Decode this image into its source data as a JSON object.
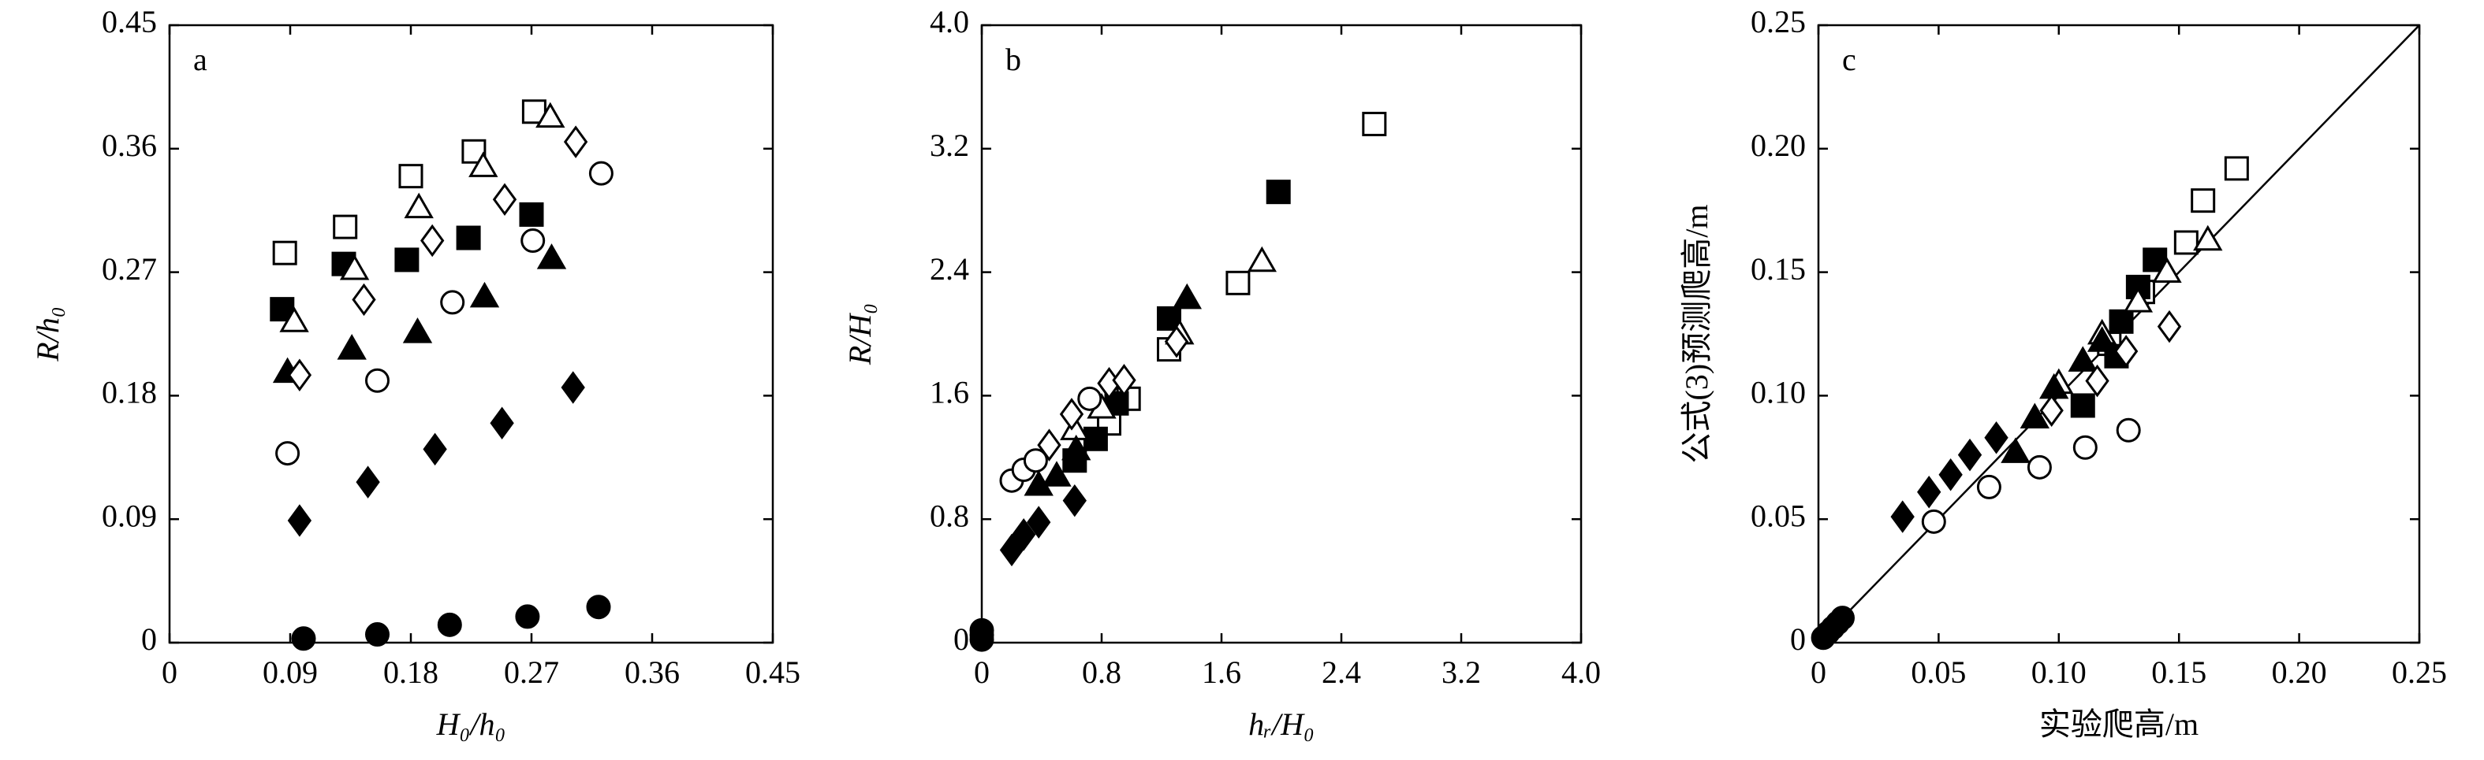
{
  "chart_data": [
    {
      "type": "scatter",
      "panel_label": "a",
      "xlabel": "H₀/h₀",
      "ylabel": "R/h₀",
      "xlim": [
        0,
        0.45
      ],
      "ylim": [
        0,
        0.45
      ],
      "xticks": [
        0,
        0.09,
        0.18,
        0.27,
        0.36,
        0.45
      ],
      "yticks": [
        0,
        0.09,
        0.18,
        0.27,
        0.36,
        0.45
      ],
      "series": [
        {
          "marker": "square",
          "filled": false,
          "color": "#000000",
          "x": [
            0.086,
            0.131,
            0.18,
            0.227,
            0.272
          ],
          "values": [
            0.284,
            0.303,
            0.34,
            0.358,
            0.387
          ]
        },
        {
          "marker": "square",
          "filled": true,
          "color": "#000000",
          "x": [
            0.084,
            0.13,
            0.177,
            0.223,
            0.27
          ],
          "values": [
            0.243,
            0.276,
            0.279,
            0.295,
            0.312
          ]
        },
        {
          "marker": "triangle",
          "filled": false,
          "color": "#000000",
          "x": [
            0.093,
            0.138,
            0.186,
            0.234,
            0.284
          ],
          "values": [
            0.234,
            0.272,
            0.317,
            0.347,
            0.383
          ]
        },
        {
          "marker": "triangle",
          "filled": true,
          "color": "#000000",
          "x": [
            0.088,
            0.136,
            0.185,
            0.235,
            0.285
          ],
          "values": [
            0.197,
            0.214,
            0.226,
            0.252,
            0.28
          ]
        },
        {
          "marker": "diamond",
          "filled": false,
          "color": "#000000",
          "x": [
            0.097,
            0.145,
            0.196,
            0.25,
            0.303
          ],
          "values": [
            0.195,
            0.25,
            0.293,
            0.323,
            0.365
          ]
        },
        {
          "marker": "diamond",
          "filled": true,
          "color": "#000000",
          "x": [
            0.097,
            0.148,
            0.198,
            0.248,
            0.301
          ],
          "values": [
            0.089,
            0.117,
            0.141,
            0.16,
            0.186
          ]
        },
        {
          "marker": "circle",
          "filled": false,
          "color": "#000000",
          "x": [
            0.088,
            0.155,
            0.211,
            0.271,
            0.322
          ],
          "values": [
            0.138,
            0.191,
            0.248,
            0.293,
            0.342
          ]
        },
        {
          "marker": "circle",
          "filled": true,
          "color": "#000000",
          "x": [
            0.1,
            0.155,
            0.209,
            0.267,
            0.32
          ],
          "values": [
            0.003,
            0.006,
            0.013,
            0.019,
            0.026
          ]
        }
      ]
    },
    {
      "type": "scatter",
      "panel_label": "b",
      "xlabel": "hᵣ/H₀",
      "ylabel": "R/H₀",
      "xlim": [
        0,
        4
      ],
      "ylim": [
        0,
        4
      ],
      "xticks": [
        0,
        0.8,
        1.6,
        2.4,
        3.2,
        {
          "value": 4,
          "label": "4.0"
        }
      ],
      "yticks": [
        0,
        0.8,
        1.6,
        2.4,
        3.2,
        {
          "value": 4,
          "label": "4.0"
        }
      ],
      "series": [
        {
          "marker": "square",
          "filled": false,
          "color": "#000000",
          "x": [
            0.85,
            0.98,
            1.25,
            1.71,
            2.62
          ],
          "values": [
            1.42,
            1.58,
            1.9,
            2.33,
            3.36
          ]
        },
        {
          "marker": "square",
          "filled": true,
          "color": "#000000",
          "x": [
            0.62,
            0.76,
            0.9,
            1.25,
            1.98
          ],
          "values": [
            1.18,
            1.32,
            1.55,
            2.1,
            2.92
          ]
        },
        {
          "marker": "triangle",
          "filled": false,
          "color": "#000000",
          "x": [
            0.62,
            0.8,
            1.32,
            1.87
          ],
          "values": [
            1.38,
            1.52,
            2.0,
            2.47
          ]
        },
        {
          "marker": "triangle",
          "filled": true,
          "color": "#000000",
          "x": [
            0.38,
            0.5,
            0.63,
            1.37
          ],
          "values": [
            1.02,
            1.08,
            1.25,
            2.23
          ]
        },
        {
          "marker": "diamond",
          "filled": false,
          "color": "#000000",
          "x": [
            0.45,
            0.6,
            0.85,
            0.95,
            1.3
          ],
          "values": [
            1.28,
            1.48,
            1.68,
            1.7,
            1.95
          ]
        },
        {
          "marker": "diamond",
          "filled": true,
          "color": "#000000",
          "x": [
            0.2,
            0.28,
            0.38,
            0.62
          ],
          "values": [
            0.6,
            0.7,
            0.78,
            0.92
          ]
        },
        {
          "marker": "circle",
          "filled": false,
          "color": "#000000",
          "x": [
            0.2,
            0.28,
            0.36,
            0.72
          ],
          "values": [
            1.05,
            1.12,
            1.18,
            1.58
          ]
        },
        {
          "marker": "circle",
          "filled": true,
          "color": "#000000",
          "x": [
            0,
            0,
            0
          ],
          "values": [
            0.02,
            0.05,
            0.08
          ]
        }
      ]
    },
    {
      "type": "scatter",
      "panel_label": "c",
      "xlabel": "实验爬高/m",
      "ylabel": "公式(3)预测爬高/m",
      "xlim": [
        0,
        0.25
      ],
      "ylim": [
        0,
        0.25
      ],
      "diagonal": true,
      "xticks": [
        0,
        0.05,
        {
          "value": 0.1,
          "label": "0.10"
        },
        0.15,
        {
          "value": 0.2,
          "label": "0.20"
        },
        0.25
      ],
      "yticks": [
        0,
        0.05,
        {
          "value": 0.1,
          "label": "0.10"
        },
        0.15,
        {
          "value": 0.2,
          "label": "0.20"
        },
        0.25
      ],
      "series": [
        {
          "marker": "square",
          "filled": false,
          "color": "#000000",
          "x": [
            0.121,
            0.135,
            0.153,
            0.16,
            0.174
          ],
          "values": [
            0.121,
            0.142,
            0.162,
            0.179,
            0.192
          ]
        },
        {
          "marker": "square",
          "filled": true,
          "color": "#000000",
          "x": [
            0.11,
            0.124,
            0.126,
            0.133,
            0.14
          ],
          "values": [
            0.096,
            0.116,
            0.13,
            0.144,
            0.155
          ]
        },
        {
          "marker": "triangle",
          "filled": false,
          "color": "#000000",
          "x": [
            0.1,
            0.118,
            0.133,
            0.145,
            0.162
          ],
          "values": [
            0.105,
            0.125,
            0.138,
            0.15,
            0.163
          ]
        },
        {
          "marker": "triangle",
          "filled": true,
          "color": "#000000",
          "x": [
            0.082,
            0.09,
            0.098,
            0.11,
            0.118
          ],
          "values": [
            0.077,
            0.091,
            0.103,
            0.114,
            0.122
          ]
        },
        {
          "marker": "diamond",
          "filled": false,
          "color": "#000000",
          "x": [
            0.097,
            0.116,
            0.128,
            0.146
          ],
          "values": [
            0.094,
            0.106,
            0.118,
            0.128
          ]
        },
        {
          "marker": "diamond",
          "filled": true,
          "color": "#000000",
          "x": [
            0.035,
            0.046,
            0.055,
            0.063,
            0.074
          ],
          "values": [
            0.051,
            0.061,
            0.068,
            0.076,
            0.083
          ]
        },
        {
          "marker": "circle",
          "filled": false,
          "color": "#000000",
          "x": [
            0.048,
            0.071,
            0.092,
            0.111,
            0.129
          ],
          "values": [
            0.049,
            0.063,
            0.071,
            0.079,
            0.086
          ]
        },
        {
          "marker": "circle",
          "filled": true,
          "color": "#000000",
          "x": [
            0.002,
            0.004,
            0.006,
            0.008,
            0.01
          ],
          "values": [
            0.002,
            0.004,
            0.006,
            0.008,
            0.01
          ]
        }
      ]
    }
  ]
}
